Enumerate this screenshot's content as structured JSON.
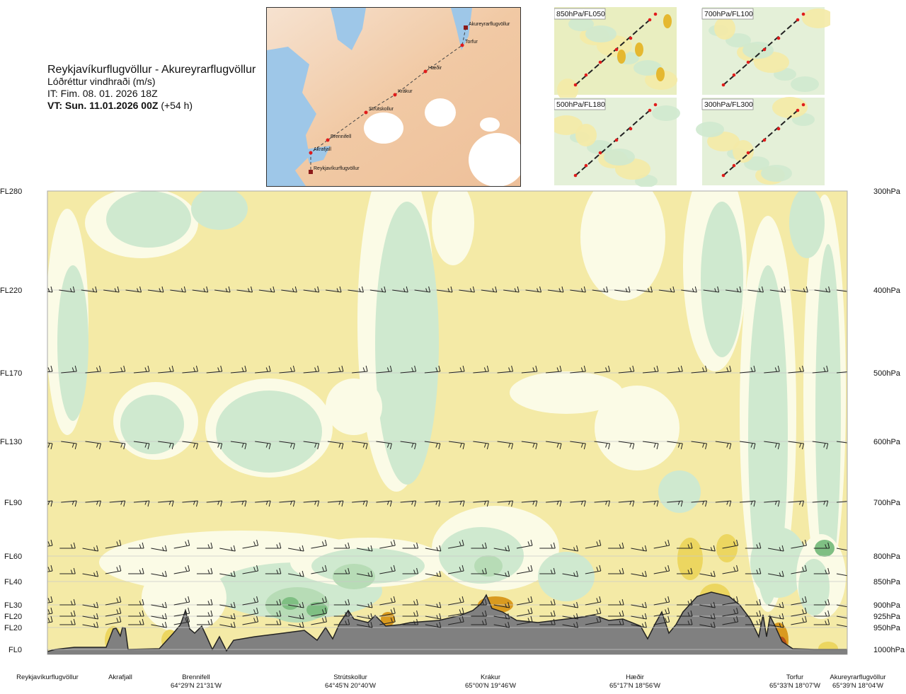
{
  "header": {
    "title": "Reykjavíkurflugvöllur - Akureyrarflugvöllur",
    "subtitle": "Lóðréttur vindhraði (m/s)",
    "issue_time": "IT: Fim. 08. 01. 2026 18Z",
    "valid_time_label": "VT: Sun. 11.01.2026 00Z",
    "lead_time": "(+54 h)"
  },
  "route_map": {
    "waypoints": [
      "Akureyrarflugvöllur",
      "Torfur",
      "Hæðir",
      "Krákur",
      "Strútskollur",
      "Brennifell",
      "Akrafjall",
      "Reykjavíkurflugvöllur"
    ]
  },
  "level_maps": [
    {
      "label": "850hPa/FL050"
    },
    {
      "label": "700hPa/FL100"
    },
    {
      "label": "500hPa/FL180"
    },
    {
      "label": "300hPa/FL300"
    }
  ],
  "chart_data": {
    "type": "cross-section",
    "title": "Lóðréttur vindhraði (m/s)",
    "left_axis_labels": [
      "FL280",
      "FL220",
      "FL170",
      "FL130",
      "FL90",
      "FL60",
      "FL40",
      "FL30",
      "FL20",
      "FL20",
      "FL0"
    ],
    "right_axis_labels": [
      "300hPa",
      "400hPa",
      "500hPa",
      "600hPa",
      "700hPa",
      "800hPa",
      "850hPa",
      "900hPa",
      "925hPa",
      "950hPa",
      "1000hPa"
    ],
    "pressure_levels_hpa": [
      300,
      400,
      500,
      600,
      700,
      800,
      850,
      900,
      925,
      950,
      1000
    ],
    "route_points": [
      {
        "name": "Reykjavíkurflugvöllur",
        "coord": ""
      },
      {
        "name": "Akrafjall",
        "coord": ""
      },
      {
        "name": "Brennifell",
        "coord": "64°29'N 21°31'W"
      },
      {
        "name": "Strútskollur",
        "coord": "64°45'N 20°40'W"
      },
      {
        "name": "Krákur",
        "coord": "65°00'N 19°46'W"
      },
      {
        "name": "Hæðir",
        "coord": "65°17'N 18°56'W"
      },
      {
        "name": "Torfur",
        "coord": "65°33'N 18°07'W"
      },
      {
        "name": "Akureyrarflugvöllur",
        "coord": "65°39'N 18°04'W"
      }
    ],
    "colors": {
      "sinking": "#f4eaa6",
      "rising": "#cfe9cf",
      "near_zero": "#fbfbe6",
      "terrain": "#808080"
    }
  }
}
